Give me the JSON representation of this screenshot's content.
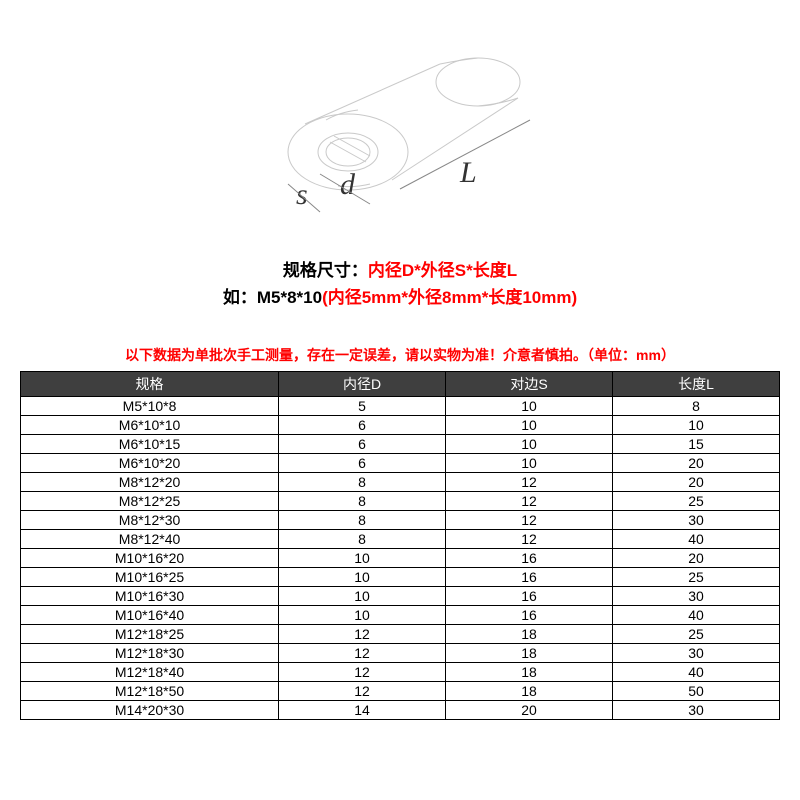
{
  "diagram": {
    "labels": {
      "s": "s",
      "d": "d",
      "L": "L"
    },
    "label_font": "italic 30px 'Times New Roman', serif",
    "stroke_color": "#c9c9c9",
    "label_color": "#333333"
  },
  "caption": {
    "line1_black": "规格尺寸：",
    "line1_red": "内径D*外径S*长度L",
    "line2_black": "如：M5*8*10",
    "line2_red": "(内径5mm*外径8mm*长度10mm)",
    "font_size": 17,
    "red_color": "#ff0000",
    "black_color": "#000000"
  },
  "warning": {
    "text": "以下数据为单批次手工测量，存在一定误差，请以实物为准！介意者慎拍。（单位：mm）",
    "color": "#ff0000",
    "font_size": 14
  },
  "table": {
    "header_bg": "#3f3f3f",
    "header_fg": "#ffffff",
    "border_color": "#000000",
    "columns": [
      "规格",
      "内径D",
      "对边S",
      "长度L"
    ],
    "col_widths_pct": [
      34,
      22,
      22,
      22
    ],
    "rows": [
      [
        "M5*10*8",
        "5",
        "10",
        "8"
      ],
      [
        "M6*10*10",
        "6",
        "10",
        "10"
      ],
      [
        "M6*10*15",
        "6",
        "10",
        "15"
      ],
      [
        "M6*10*20",
        "6",
        "10",
        "20"
      ],
      [
        "M8*12*20",
        "8",
        "12",
        "20"
      ],
      [
        "M8*12*25",
        "8",
        "12",
        "25"
      ],
      [
        "M8*12*30",
        "8",
        "12",
        "30"
      ],
      [
        "M8*12*40",
        "8",
        "12",
        "40"
      ],
      [
        "M10*16*20",
        "10",
        "16",
        "20"
      ],
      [
        "M10*16*25",
        "10",
        "16",
        "25"
      ],
      [
        "M10*16*30",
        "10",
        "16",
        "30"
      ],
      [
        "M10*16*40",
        "10",
        "16",
        "40"
      ],
      [
        "M12*18*25",
        "12",
        "18",
        "25"
      ],
      [
        "M12*18*30",
        "12",
        "18",
        "30"
      ],
      [
        "M12*18*40",
        "12",
        "18",
        "40"
      ],
      [
        "M12*18*50",
        "12",
        "18",
        "50"
      ],
      [
        "M14*20*30",
        "14",
        "20",
        "30"
      ]
    ]
  }
}
